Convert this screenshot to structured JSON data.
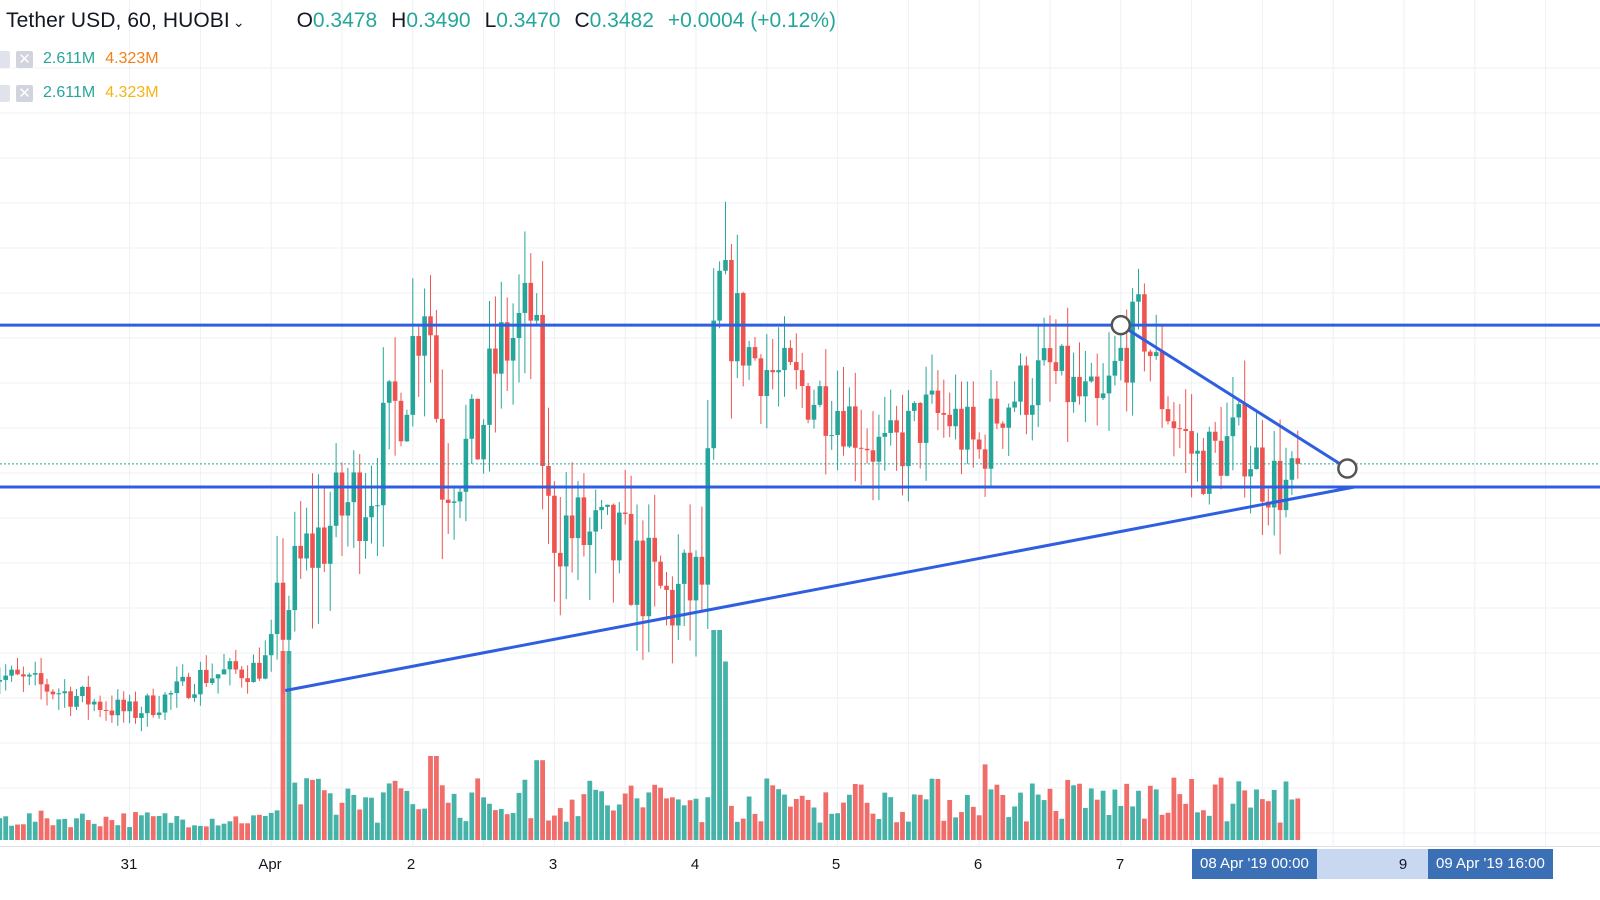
{
  "header": {
    "title": "Tether USD, 60, HUOBI",
    "open_label": "O",
    "open": "0.3478",
    "high_label": "H",
    "high": "0.3490",
    "low_label": "L",
    "low": "0.3470",
    "close_label": "C",
    "close": "0.3482",
    "change": "+0.0004 (+0.12%)"
  },
  "studies": [
    {
      "v1": "2.611M",
      "v2": "4.323M"
    },
    {
      "v1": "2.611M",
      "v2": "4.323M"
    }
  ],
  "xaxis": {
    "ticks": [
      "31",
      "Apr",
      "2",
      "3",
      "4",
      "5",
      "6",
      "7",
      "9"
    ],
    "badge_left": "08 Apr '19   00:00",
    "badge_right": "09 Apr '19   16:00"
  },
  "colors": {
    "up": "#26a69a",
    "down": "#ef5350",
    "trendline": "#2f5fe0",
    "grid": "#eef0f4"
  },
  "chart_data": {
    "type": "candlestick",
    "symbol": "Tether USD",
    "interval": "60",
    "exchange": "HUOBI",
    "start_date": "2019-03-30",
    "end_date": "2019-04-09",
    "price_range": [
      0.3405,
      0.3565
    ],
    "last_close": 0.3482,
    "anchors_day_price": [
      [
        0,
        0.3437
      ],
      [
        0.6,
        0.3432
      ],
      [
        1.0,
        0.3428
      ],
      [
        1.3,
        0.3432
      ],
      [
        1.5,
        0.3436
      ],
      [
        1.94,
        0.3438
      ],
      [
        2.05,
        0.3447
      ],
      [
        2.25,
        0.3462
      ],
      [
        2.5,
        0.3472
      ],
      [
        2.7,
        0.3478
      ],
      [
        2.95,
        0.35
      ],
      [
        3.1,
        0.3522
      ],
      [
        3.2,
        0.348
      ],
      [
        3.45,
        0.3486
      ],
      [
        3.6,
        0.3505
      ],
      [
        3.85,
        0.3515
      ],
      [
        3.95,
        0.347
      ],
      [
        4.2,
        0.3466
      ],
      [
        4.45,
        0.3463
      ],
      [
        4.6,
        0.3458
      ],
      [
        4.8,
        0.3452
      ],
      [
        5.05,
        0.3456
      ],
      [
        5.15,
        0.352
      ],
      [
        5.35,
        0.3507
      ],
      [
        5.6,
        0.35
      ],
      [
        6.0,
        0.3495
      ],
      [
        6.35,
        0.3483
      ],
      [
        6.6,
        0.3492
      ],
      [
        6.8,
        0.3492
      ],
      [
        7.0,
        0.3484
      ],
      [
        7.15,
        0.3495
      ],
      [
        7.5,
        0.3502
      ],
      [
        7.85,
        0.3492
      ],
      [
        8.0,
        0.3505
      ],
      [
        8.15,
        0.3513
      ],
      [
        8.3,
        0.3496
      ],
      [
        8.55,
        0.3482
      ],
      [
        8.85,
        0.3488
      ],
      [
        9.0,
        0.348
      ],
      [
        9.2,
        0.3476
      ],
      [
        9.25,
        0.3482
      ]
    ],
    "volume_peaks_day": [
      [
        2.1,
        0.9
      ],
      [
        5.15,
        1.0
      ],
      [
        5.2,
        0.85
      ],
      [
        7.05,
        0.36
      ],
      [
        3.15,
        0.4
      ],
      [
        3.9,
        0.38
      ]
    ],
    "lines": [
      {
        "type": "horizontal",
        "price": 0.3512
      },
      {
        "type": "horizontal",
        "price": 0.3477
      },
      {
        "type": "trend",
        "from": [
          2.1,
          0.3433
        ],
        "to": [
          9.65,
          0.3477
        ]
      },
      {
        "type": "trend",
        "from": [
          8.0,
          0.3512
        ],
        "to": [
          9.6,
          0.3481
        ]
      }
    ]
  }
}
